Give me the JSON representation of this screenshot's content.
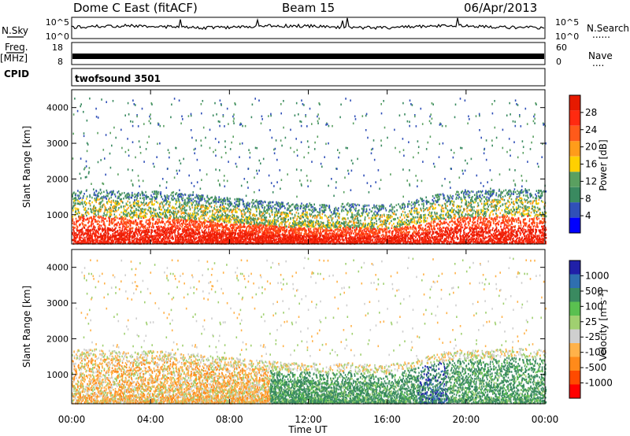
{
  "header": {
    "station": "Dome C East (fitACF)",
    "beam": "Beam 15",
    "date": "06/Apr/2013"
  },
  "strip_labels": {
    "nsky": "N.Sky",
    "nsky_ticks": [
      "10^5",
      "10^0"
    ],
    "nsearch": "N.Search",
    "nsearch_ticks": [
      "10^5",
      "10^0"
    ],
    "freq": "Freq.",
    "freq_unit": "[MHz]",
    "freq_ticks": [
      "18",
      "8"
    ],
    "nave": "Nave",
    "nave_ticks": [
      "60",
      "0"
    ],
    "cpid": "CPID",
    "cpid_value": "twofsound 3501",
    "dots": "......",
    "dots_short": "...."
  },
  "colors": {
    "power": [
      "#0000ff",
      "#3050b8",
      "#3a8a60",
      "#5aa060",
      "#ffd000",
      "#ff9c1a",
      "#ff5a1a",
      "#ff2a10",
      "#e61a00"
    ],
    "velocity": [
      "#ff0000",
      "#ff4a00",
      "#ff8a1a",
      "#ffb24a",
      "#cfcfcf",
      "#a0d070",
      "#5ac050",
      "#3a8a60",
      "#2f6fb0",
      "#2020a8"
    ],
    "line": "#000000"
  },
  "chart_data": [
    {
      "type": "heatmap",
      "name": "power",
      "ylabel": "Slant Range [km]",
      "xlabel": "",
      "x_ticks": [],
      "y_ticks": [
        "1000",
        "2000",
        "3000",
        "4000"
      ],
      "colorbar_label": "Power [dB]",
      "colorbar_ticks": [
        "4",
        "8",
        "12",
        "16",
        "20",
        "24",
        "28"
      ],
      "xlim": [
        0,
        24
      ],
      "ylim": [
        180,
        4500
      ],
      "profile": [
        [
          0,
          1200,
          0.6
        ],
        [
          1,
          1250,
          0.65
        ],
        [
          2,
          1200,
          0.7
        ],
        [
          3,
          1150,
          0.75
        ],
        [
          4,
          1200,
          0.7
        ],
        [
          5,
          1150,
          0.8
        ],
        [
          6,
          1100,
          0.9
        ],
        [
          7,
          1050,
          1.0
        ],
        [
          8,
          1000,
          1.0
        ],
        [
          9,
          950,
          0.95
        ],
        [
          10,
          900,
          0.9
        ],
        [
          11,
          850,
          0.85
        ],
        [
          12,
          850,
          0.8
        ],
        [
          13,
          800,
          0.6
        ],
        [
          14,
          850,
          0.55
        ],
        [
          15,
          800,
          0.5
        ],
        [
          16,
          800,
          0.4
        ],
        [
          17,
          900,
          0.45
        ],
        [
          18,
          1050,
          0.5
        ],
        [
          19,
          1150,
          0.55
        ],
        [
          20,
          1200,
          0.6
        ],
        [
          21,
          1200,
          0.65
        ],
        [
          22,
          1250,
          0.65
        ],
        [
          23,
          1250,
          0.6
        ],
        [
          24,
          1200,
          0.55
        ]
      ]
    },
    {
      "type": "heatmap",
      "name": "velocity",
      "ylabel": "Slant Range [km]",
      "xlabel": "Time UT",
      "x_ticks": [
        "00:00",
        "04:00",
        "08:00",
        "12:00",
        "16:00",
        "20:00",
        "00:00"
      ],
      "y_ticks": [
        "1000",
        "2000",
        "3000",
        "4000"
      ],
      "colorbar_label": "Velocity [m s^-1]",
      "colorbar_ticks": [
        "1000",
        "500",
        "100",
        "25",
        "-25",
        "-100",
        "-500",
        "-1000"
      ],
      "xlim": [
        0,
        24
      ],
      "ylim": [
        180,
        4500
      ],
      "profile": [
        [
          0,
          1200,
          0.6
        ],
        [
          1,
          1250,
          0.65
        ],
        [
          2,
          1200,
          0.7
        ],
        [
          3,
          1150,
          0.75
        ],
        [
          4,
          1200,
          0.7
        ],
        [
          5,
          1150,
          0.8
        ],
        [
          6,
          1100,
          0.9
        ],
        [
          7,
          1050,
          1.0
        ],
        [
          8,
          1000,
          1.0
        ],
        [
          9,
          950,
          0.95
        ],
        [
          10,
          900,
          0.9
        ],
        [
          11,
          850,
          0.85
        ],
        [
          12,
          850,
          0.8
        ],
        [
          13,
          800,
          0.6
        ],
        [
          14,
          850,
          0.55
        ],
        [
          15,
          800,
          0.5
        ],
        [
          16,
          800,
          0.4
        ],
        [
          17,
          900,
          0.45
        ],
        [
          18,
          1050,
          0.5
        ],
        [
          19,
          1150,
          0.55
        ],
        [
          20,
          1200,
          0.6
        ],
        [
          21,
          1200,
          0.65
        ],
        [
          22,
          1250,
          0.65
        ],
        [
          23,
          1250,
          0.6
        ],
        [
          24,
          1200,
          0.55
        ]
      ]
    }
  ]
}
